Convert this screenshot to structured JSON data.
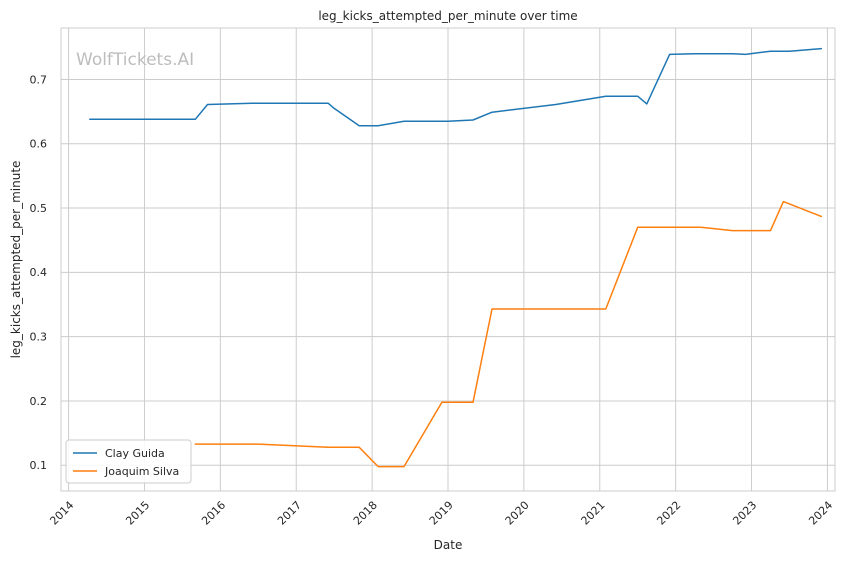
{
  "chart_data": {
    "type": "line",
    "title": "leg_kicks_attempted_per_minute over time",
    "xlabel": "Date",
    "ylabel": "leg_kicks_attempted_per_minute",
    "watermark": "WolfTickets.AI",
    "x_ticks": [
      "2014",
      "2015",
      "2016",
      "2017",
      "2018",
      "2019",
      "2020",
      "2021",
      "2022",
      "2023",
      "2024"
    ],
    "y_ticks": [
      "0.1",
      "0.2",
      "0.3",
      "0.4",
      "0.5",
      "0.6",
      "0.7"
    ],
    "xlim": [
      2013.9,
      2024.1
    ],
    "ylim": [
      0.06,
      0.78
    ],
    "grid": true,
    "legend_position": "lower-left",
    "series": [
      {
        "name": "Clay Guida",
        "color": "#1f77b4",
        "x": [
          2014.28,
          2015.67,
          2015.83,
          2016.42,
          2017.42,
          2017.5,
          2017.83,
          2018.08,
          2018.42,
          2019.0,
          2019.33,
          2019.58,
          2020.42,
          2021.08,
          2021.5,
          2021.62,
          2021.92,
          2022.25,
          2022.75,
          2022.92,
          2023.25,
          2023.5,
          2023.92
        ],
        "y": [
          0.638,
          0.638,
          0.661,
          0.663,
          0.663,
          0.655,
          0.628,
          0.628,
          0.635,
          0.635,
          0.637,
          0.649,
          0.661,
          0.674,
          0.674,
          0.662,
          0.739,
          0.74,
          0.74,
          0.739,
          0.744,
          0.744,
          0.748
        ]
      },
      {
        "name": "Joaquim Silva",
        "color": "#ff7f0e",
        "x": [
          2015.67,
          2016.5,
          2017.42,
          2017.83,
          2018.08,
          2018.42,
          2018.92,
          2019.33,
          2019.58,
          2021.08,
          2021.5,
          2022.33,
          2022.75,
          2023.25,
          2023.42,
          2023.92
        ],
        "y": [
          0.133,
          0.133,
          0.128,
          0.128,
          0.098,
          0.098,
          0.198,
          0.198,
          0.343,
          0.343,
          0.47,
          0.47,
          0.465,
          0.465,
          0.51,
          0.487
        ]
      }
    ]
  }
}
